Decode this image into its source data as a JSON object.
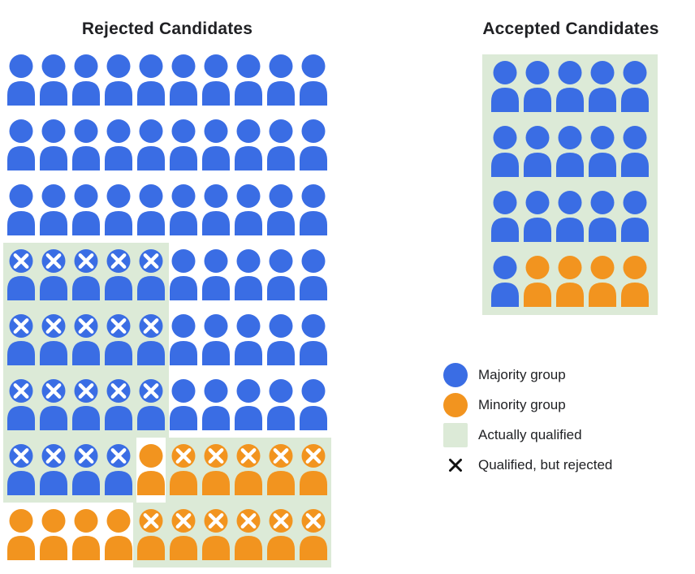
{
  "titles": {
    "rejected": "Rejected Candidates",
    "accepted": "Accepted Candidates"
  },
  "colors": {
    "majority": "#3a6de4",
    "minority": "#f2941f",
    "qualified_bg": "#dcead7",
    "x_mark": "#ffffff",
    "legend_x": "#111111"
  },
  "legend": {
    "items": [
      {
        "swatch": "circle-majority",
        "label": "Majority group"
      },
      {
        "swatch": "circle-minority",
        "label": "Minority group"
      },
      {
        "swatch": "square-qualified",
        "label": "Actually qualified"
      },
      {
        "swatch": "x-mark",
        "label": "Qualified, but rejected"
      }
    ]
  },
  "chart_data": {
    "type": "pictogram",
    "cell_legend": {
      "b": "majority person",
      "o": "minority person",
      "uppercase": "qualified-but-rejected (white X on head)",
      "qualified_regions": "[rowStart, colStart, rowEnd, colEnd] zero-indexed, green background = actually qualified"
    },
    "rejected": {
      "title": "Rejected Candidates",
      "grid_cols": 10,
      "rows": [
        "bbbbbbbbbb",
        "bbbbbbbbbb",
        "bbbbbbbbbb",
        "BBBBBbbbbb",
        "BBBBBbbbbb",
        "BBBBBbbbbb",
        "BBBBoOOOOO",
        "ooooOOOOOO"
      ],
      "qualified_regions": [
        [
          3,
          0,
          5,
          4
        ],
        [
          6,
          0,
          6,
          3
        ],
        [
          6,
          5,
          6,
          9
        ],
        [
          7,
          4,
          7,
          9
        ]
      ]
    },
    "accepted": {
      "title": "Accepted Candidates",
      "grid_cols": 5,
      "rows": [
        "bbbbb",
        "bbbbb",
        "bbbbb",
        "boooo"
      ],
      "qualified_regions": [
        [
          0,
          0,
          3,
          4
        ]
      ]
    },
    "counts": {
      "rejected": {
        "majority": 64,
        "minority": 16,
        "majority_qualified_but_rejected": 19,
        "minority_qualified_but_rejected": 11,
        "total": 80
      },
      "accepted": {
        "majority": 16,
        "minority": 4,
        "total": 20
      },
      "population": {
        "majority": 80,
        "minority": 20,
        "total": 100
      }
    }
  }
}
